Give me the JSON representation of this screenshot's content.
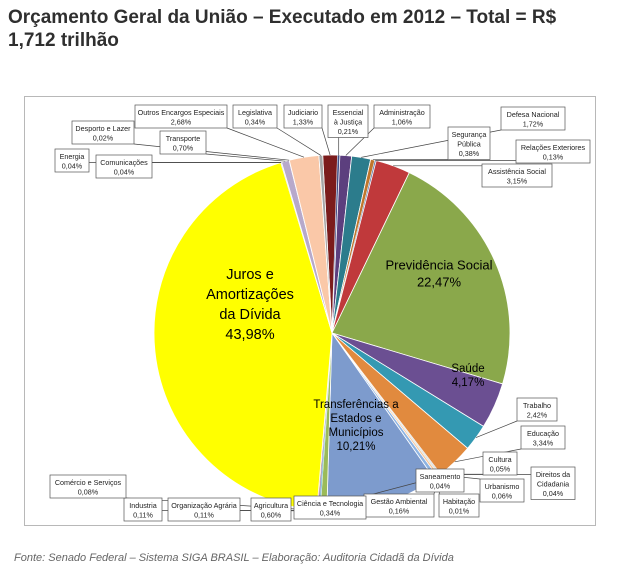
{
  "title": {
    "line1": "Orçamento Geral da União – Executado em 2012 – Total = R$",
    "line2": "1,712  trilhão"
  },
  "source": "Fonte: Senado Federal – Sistema SIGA BRASIL – Elaboração: Auditoria Cidadã da Dívida",
  "chart_data": {
    "type": "pie",
    "title": "Orçamento Geral da União – Executado em 2012 – Total = R$ 1,712 trilhão",
    "unit": "%",
    "slices": [
      {
        "name": "Judiciario",
        "label": "Judiciario",
        "value": 1.33,
        "display": "1,33%",
        "color": "#7b1c1c"
      },
      {
        "name": "Essencial à Justiça",
        "label": "Essencial\nà Justiça",
        "value": 0.21,
        "display": "0,21%",
        "color": "#3f4e86"
      },
      {
        "name": "Administração",
        "label": "Administração",
        "value": 1.06,
        "display": "1,06%",
        "color": "#5c3f7e"
      },
      {
        "name": "Defesa Nacional",
        "label": "Defesa Nacional",
        "value": 1.72,
        "display": "1,72%",
        "color": "#2c7c8c"
      },
      {
        "name": "Segurança Pública",
        "label": "Segurança\nPública",
        "value": 0.38,
        "display": "0,38%",
        "color": "#c0762c"
      },
      {
        "name": "Relações Exteriores",
        "label": "Relações Exteriores",
        "value": 0.13,
        "display": "0,13%",
        "color": "#5a74a6"
      },
      {
        "name": "Assistência Social",
        "label": "Assistência Social",
        "value": 3.15,
        "display": "3,15%",
        "color": "#c0393b"
      },
      {
        "name": "Previdência Social",
        "label": "Previdência Social",
        "value": 22.47,
        "display": "22,47%",
        "color": "#8aa84b"
      },
      {
        "name": "Saúde",
        "label": "Saúde",
        "value": 4.17,
        "display": "4,17%",
        "color": "#6b4f92"
      },
      {
        "name": "Trabalho",
        "label": "Trabalho",
        "value": 2.42,
        "display": "2,42%",
        "color": "#3499b2"
      },
      {
        "name": "Educação",
        "label": "Educação",
        "value": 3.34,
        "display": "3,34%",
        "color": "#e18a3e"
      },
      {
        "name": "Cultura",
        "label": "Cultura",
        "value": 0.05,
        "display": "0,05%",
        "color": "#9db3d6"
      },
      {
        "name": "Direitos da Cidadania",
        "label": "Direitos da\nCidadania",
        "value": 0.04,
        "display": "0,04%",
        "color": "#d6a0a0"
      },
      {
        "name": "Urbanismo",
        "label": "Urbanismo",
        "value": 0.06,
        "display": "0,06%",
        "color": "#c3d69b"
      },
      {
        "name": "Habitação",
        "label": "Habitação",
        "value": 0.01,
        "display": "0,01%",
        "color": "#b4a7d6"
      },
      {
        "name": "Saneamento",
        "label": "Saneamento",
        "value": 0.04,
        "display": "0,04%",
        "color": "#93cddd"
      },
      {
        "name": "Gestão Ambiental",
        "label": "Gestão Ambiental",
        "value": 0.16,
        "display": "0,16%",
        "color": "#fac090"
      },
      {
        "name": "Ciência e Tecnologia",
        "label": "Ciência e Tecnologia",
        "value": 0.34,
        "display": "0,34%",
        "color": "#8db3e2"
      },
      {
        "name": "Transferências a Estados e Municípios",
        "label": "Transferências a\nEstados e\nMunicípios",
        "value": 10.21,
        "display": "10,21%",
        "color": "#7d9bcd"
      },
      {
        "name": "Agricultura",
        "label": "Agricultura",
        "value": 0.6,
        "display": "0,60%",
        "color": "#9bbb59"
      },
      {
        "name": "Organização Agrária",
        "label": "Organização Agrária",
        "value": 0.11,
        "display": "0,11%",
        "color": "#4bacc6"
      },
      {
        "name": "Industria",
        "label": "Industria",
        "value": 0.11,
        "display": "0,11%",
        "color": "#8064a2"
      },
      {
        "name": "Comércio e Serviços",
        "label": "Comércio e Serviços",
        "value": 0.08,
        "display": "0,08%",
        "color": "#f79646"
      },
      {
        "name": "Juros e Amortizações da Dívida",
        "label": "Juros e\nAmortizações\nda Dívida",
        "value": 43.98,
        "display": "43,98%",
        "color": "#ffff00"
      },
      {
        "name": "Comunicações",
        "label": "Comunicações",
        "value": 0.04,
        "display": "0,04%",
        "color": "#95b3d7"
      },
      {
        "name": "Energia",
        "label": "Energia",
        "value": 0.04,
        "display": "0,04%",
        "color": "#d99694"
      },
      {
        "name": "Transporte",
        "label": "Transporte",
        "value": 0.7,
        "display": "0,70%",
        "color": "#b7a9cb"
      },
      {
        "name": "Desporto e Lazer",
        "label": "Desporto e Lazer",
        "value": 0.02,
        "display": "0,02%",
        "color": "#4f81bd"
      },
      {
        "name": "Outros Encargos Especiais",
        "label": "Outros Encargos Especiais",
        "value": 2.68,
        "display": "2,68%",
        "color": "#fac8a8"
      },
      {
        "name": "Legislativa",
        "label": "Legislativa",
        "value": 0.34,
        "display": "0,34%",
        "color": "#a5a5a5"
      }
    ]
  }
}
